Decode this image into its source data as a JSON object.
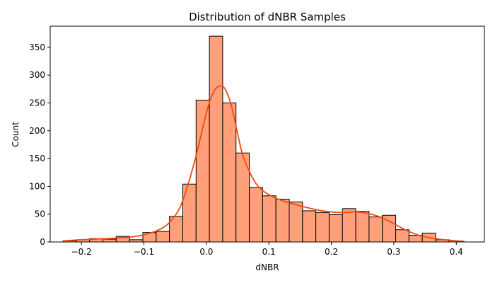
{
  "chart_data": {
    "type": "bar",
    "title": "Distribution of dNBR Samples",
    "xlabel": "dNBR",
    "ylabel": "Count",
    "xlim": [
      -0.25,
      0.445
    ],
    "ylim": [
      0,
      388
    ],
    "xticks": [
      -0.2,
      -0.1,
      0.0,
      0.1,
      0.2,
      0.3,
      0.4
    ],
    "xtick_labels": [
      "−0.2",
      "−0.1",
      "0.0",
      "0.1",
      "0.2",
      "0.3",
      "0.4"
    ],
    "yticks": [
      0,
      50,
      100,
      150,
      200,
      250,
      300,
      350
    ],
    "ytick_labels": [
      "0",
      "50",
      "100",
      "150",
      "200",
      "250",
      "300",
      "350"
    ],
    "bin_start": -0.2295,
    "bin_width": 0.0213,
    "values": [
      2,
      4,
      6,
      5,
      10,
      4,
      17,
      19,
      46,
      104,
      255,
      370,
      250,
      160,
      98,
      83,
      77,
      72,
      56,
      53,
      49,
      60,
      55,
      45,
      48,
      22,
      12,
      16,
      4,
      2
    ],
    "kde": {
      "x": [
        -0.23,
        -0.2,
        -0.16,
        -0.12,
        -0.1,
        -0.08,
        -0.06,
        -0.04,
        -0.02,
        0.0,
        0.01,
        0.02,
        0.03,
        0.04,
        0.05,
        0.06,
        0.08,
        0.1,
        0.12,
        0.15,
        0.18,
        0.2,
        0.22,
        0.24,
        0.26,
        0.28,
        0.3,
        0.32,
        0.34,
        0.36,
        0.38,
        0.4,
        0.413
      ],
      "y": [
        2,
        4,
        6,
        9,
        13,
        20,
        34,
        68,
        140,
        232,
        266,
        280,
        275,
        245,
        195,
        150,
        104,
        85,
        75,
        65,
        57,
        54,
        53,
        54,
        51,
        44,
        33,
        21,
        12,
        7,
        4,
        2,
        1
      ]
    },
    "grid": false,
    "colors": {
      "bar_fill": "#ffa07a",
      "bar_edge": "#000000",
      "kde_line": "#f04a0f"
    }
  }
}
